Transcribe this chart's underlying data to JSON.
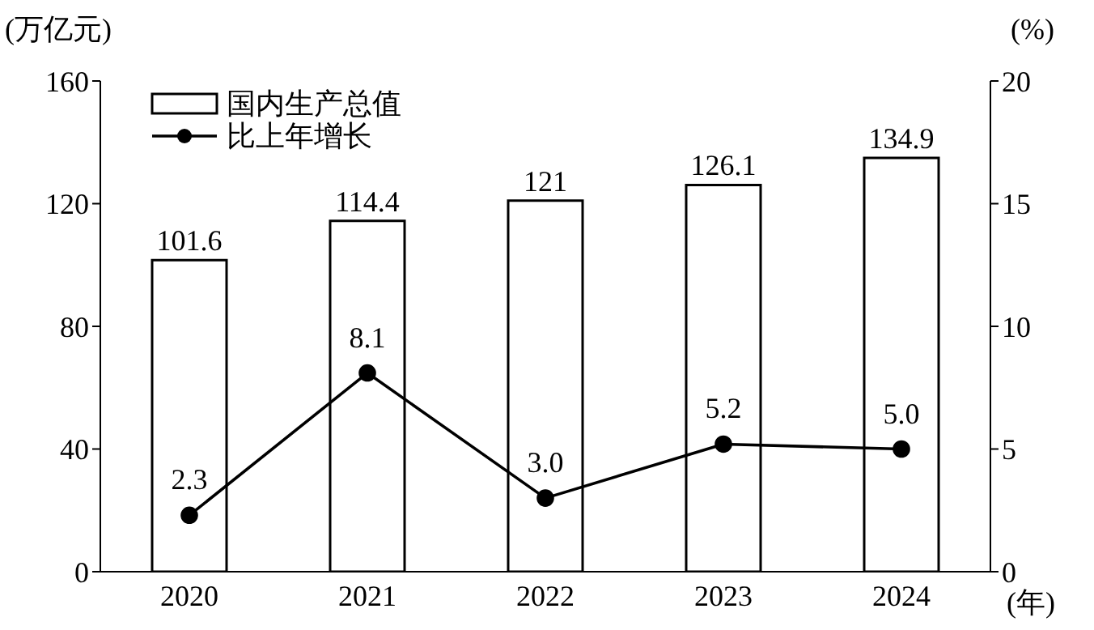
{
  "chart_data": {
    "type": "bar",
    "ylabel": "(万亿元)",
    "y2label": "(%)",
    "xlabel": "(年)",
    "categories": [
      "2020",
      "2021",
      "2022",
      "2023",
      "2024"
    ],
    "series": [
      {
        "name": "国内生产总值",
        "color": "#ffffff",
        "values": [
          101.6,
          114.4,
          121,
          126.1,
          134.9
        ],
        "value_labels": [
          "101.6",
          "114.4",
          "121",
          "126.1",
          "134.9"
        ]
      },
      {
        "name": "比上年增长",
        "type": "line",
        "axis": "y2",
        "color": "#000000",
        "marker": "circle",
        "line_style": "solid",
        "values": [
          2.3,
          8.1,
          3.0,
          5.2,
          5.0
        ],
        "value_labels": [
          "2.3",
          "8.1",
          "3.0",
          "5.2",
          "5.0"
        ]
      }
    ],
    "ylim": [
      0,
      160
    ],
    "yticks": [
      0,
      40,
      80,
      120,
      160
    ],
    "y2lim": [
      0,
      20
    ],
    "y2ticks": [
      0,
      5,
      10,
      15,
      20
    ],
    "grid": false,
    "legend": "top left"
  }
}
